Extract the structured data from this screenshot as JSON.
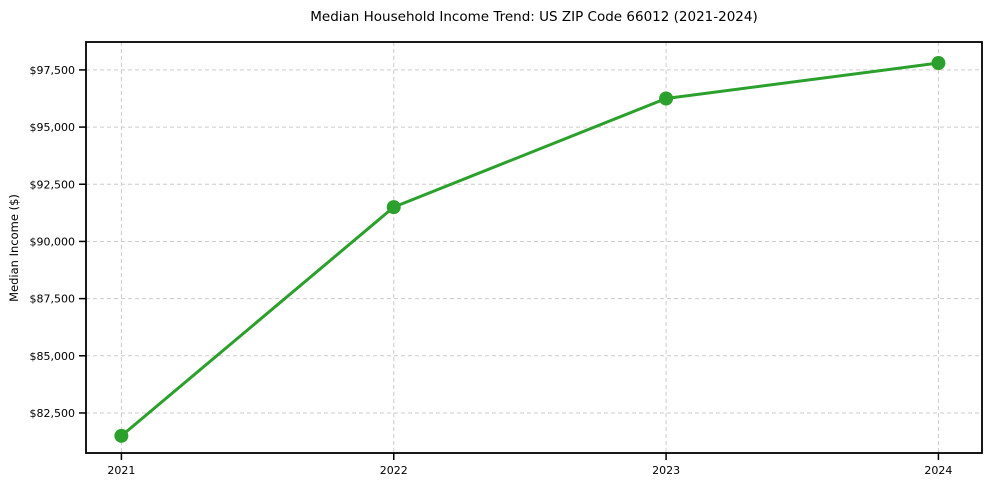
{
  "chart_data": {
    "type": "line",
    "title": "Median Household Income Trend: US ZIP Code 66012 (2021-2024)",
    "xlabel": "",
    "ylabel": "Median Income ($)",
    "x": [
      2021,
      2022,
      2023,
      2024
    ],
    "xtick_labels": [
      "2021",
      "2022",
      "2023",
      "2024"
    ],
    "series": [
      {
        "name": "Median Household Income",
        "values": [
          81500,
          91500,
          96250,
          97800
        ]
      }
    ],
    "yticks": [
      {
        "value": 82500,
        "label": "$82,500"
      },
      {
        "value": 85000,
        "label": "$85,000"
      },
      {
        "value": 87500,
        "label": "$87,500"
      },
      {
        "value": 90000,
        "label": "$90,000"
      },
      {
        "value": 92500,
        "label": "$92,500"
      },
      {
        "value": 95000,
        "label": "$95,000"
      },
      {
        "value": 97500,
        "label": "$97,500"
      }
    ],
    "ylim": [
      80750,
      98720
    ],
    "xlim": [
      2020.87,
      2024.16
    ],
    "grid": "dashed-both-axes",
    "legend": "none",
    "marker": "circle",
    "colors": {
      "line": "#2ca02c",
      "marker": "#2ca02c",
      "grid": "#cccccc",
      "axis": "#000000",
      "text": "#000000",
      "background": "#ffffff"
    }
  }
}
